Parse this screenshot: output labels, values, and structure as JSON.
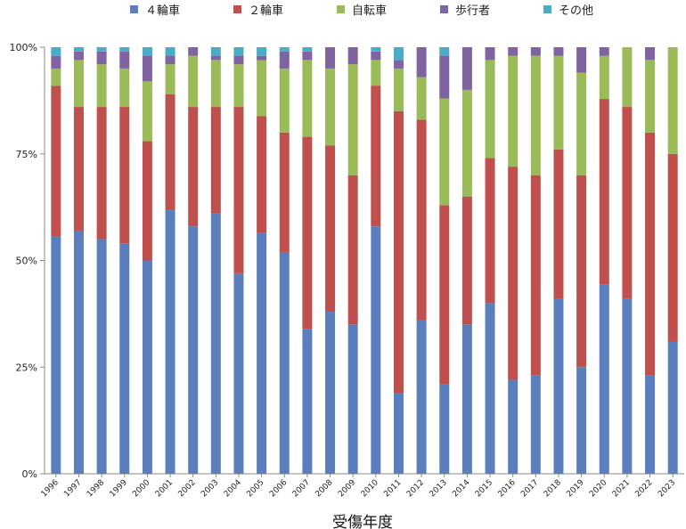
{
  "chart_data": {
    "type": "bar",
    "stacked": true,
    "normalized": true,
    "title": "",
    "xlabel": "受傷年度",
    "ylabel": "",
    "ylim": [
      0,
      100
    ],
    "yticks": [
      "0%",
      "25%",
      "50%",
      "75%",
      "100%"
    ],
    "legend_position": "top",
    "grid": false,
    "categories": [
      "1996",
      "1997",
      "1998",
      "1999",
      "2000",
      "2001",
      "2002",
      "2003",
      "2004",
      "2005",
      "2006",
      "2007",
      "2008",
      "2009",
      "2010",
      "2011",
      "2012",
      "2013",
      "2014",
      "2015",
      "2016",
      "2017",
      "2018",
      "2019",
      "2020",
      "2021",
      "2022",
      "2023"
    ],
    "series": [
      {
        "name": "４輪車",
        "color": "#5b7fbc",
        "values": [
          55,
          57,
          55,
          54,
          50,
          62,
          58,
          61,
          47,
          56,
          52,
          34,
          38,
          35,
          58,
          19,
          36,
          21,
          35,
          40,
          22,
          23,
          41,
          25,
          44,
          41,
          23,
          31
        ]
      },
      {
        "name": "２輪車",
        "color": "#c0504d",
        "values": [
          35,
          29,
          31,
          32,
          28,
          27,
          28,
          25,
          39,
          27,
          28,
          45,
          39,
          35,
          33,
          66,
          47,
          42,
          30,
          34,
          50,
          47,
          35,
          45,
          43,
          45,
          57,
          44
        ]
      },
      {
        "name": "自転車",
        "color": "#9bbb59",
        "values": [
          4,
          11,
          10,
          9,
          14,
          7,
          12,
          11,
          10,
          13,
          15,
          18,
          18,
          26,
          6,
          10,
          10,
          25,
          25,
          23,
          26,
          28,
          22,
          24,
          10,
          14,
          17,
          25
        ]
      },
      {
        "name": "歩行者",
        "color": "#8064a2",
        "values": [
          3,
          2,
          3,
          4,
          6,
          2,
          2,
          1,
          2,
          1,
          4,
          2,
          5,
          4,
          2,
          2,
          7,
          10,
          10,
          3,
          2,
          2,
          2,
          6,
          2,
          0,
          3,
          0
        ]
      },
      {
        "name": "その他",
        "color": "#4bacc6",
        "values": [
          2,
          1,
          1,
          1,
          2,
          2,
          0,
          2,
          2,
          2,
          1,
          1,
          0,
          0,
          1,
          3,
          0,
          2,
          0,
          0,
          0,
          0,
          0,
          0,
          0,
          0,
          0,
          0
        ]
      }
    ]
  }
}
